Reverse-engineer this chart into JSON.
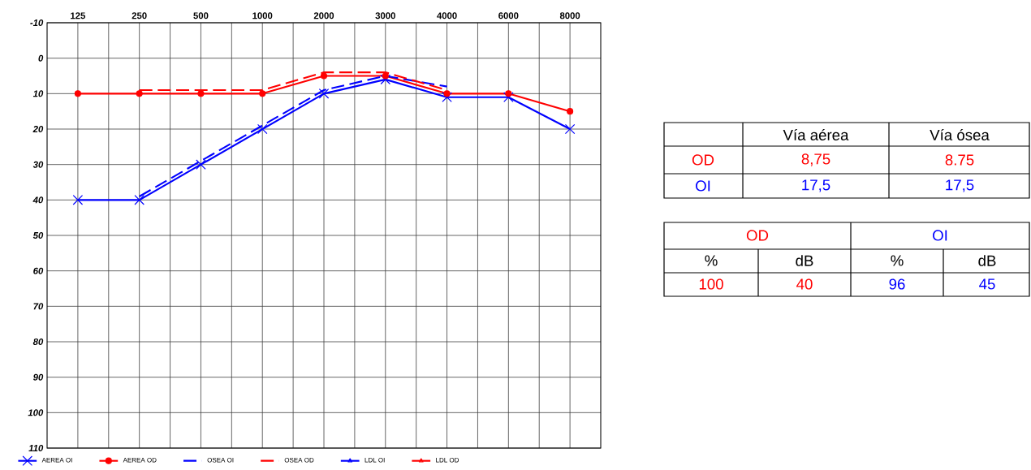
{
  "chart_data": [
    {
      "type": "line",
      "categories": [
        "125",
        "250",
        "500",
        "1000",
        "2000",
        "3000",
        "4000",
        "6000",
        "8000"
      ],
      "ylim": [
        110,
        -10
      ],
      "yticks": [
        -10,
        0,
        10,
        20,
        30,
        40,
        50,
        60,
        70,
        80,
        90,
        100,
        110
      ],
      "grid": true,
      "legend": "bottom",
      "series": [
        {
          "name": "AEREA OI",
          "color": "#0000ff",
          "marker": "cross",
          "line_style": "solid",
          "values": [
            40,
            40,
            30,
            20,
            10,
            6,
            11,
            11,
            20
          ]
        },
        {
          "name": "AEREA OD",
          "color": "#ff0000",
          "marker": "circle",
          "line_style": "solid",
          "values": [
            10,
            10,
            10,
            10,
            5,
            5,
            10,
            10,
            15
          ]
        },
        {
          "name": "OSEA OI",
          "color": "#0000ff",
          "marker": "none",
          "line_style": "dashed",
          "values": [
            null,
            39,
            29,
            19,
            9,
            5,
            8,
            null,
            null
          ]
        },
        {
          "name": "OSEA OD",
          "color": "#ff0000",
          "marker": "none",
          "line_style": "dashed",
          "values": [
            null,
            9,
            9,
            9,
            4,
            4,
            9,
            null,
            null
          ]
        },
        {
          "name": "LDL OI",
          "color": "#0000ff",
          "marker": "triangle",
          "line_style": "none",
          "values": [
            null,
            null,
            null,
            null,
            null,
            null,
            null,
            null,
            null
          ]
        },
        {
          "name": "LDL OD",
          "color": "#ff0000",
          "marker": "triangle",
          "line_style": "none",
          "values": [
            null,
            null,
            null,
            null,
            null,
            null,
            null,
            null,
            null
          ]
        }
      ]
    },
    {
      "type": "other",
      "annotations": [
        "Vía aérea",
        "Vía ósea",
        "OD",
        "8,75",
        "8.75",
        "OI",
        "17,5",
        "17,5",
        "OD",
        "OI",
        "%",
        "dB",
        "%",
        "dB",
        "100",
        "40",
        "96",
        "45"
      ],
      "colors": [
        "#000000",
        "#000000",
        "#ff0000",
        "#ff0000",
        "#ff0000",
        "#0000ff",
        "#0000ff",
        "#0000ff",
        "#ff0000",
        "#0000ff",
        "#000000",
        "#000000",
        "#000000",
        "#000000",
        "#ff0000",
        "#ff0000",
        "#0000ff",
        "#0000ff"
      ]
    }
  ]
}
